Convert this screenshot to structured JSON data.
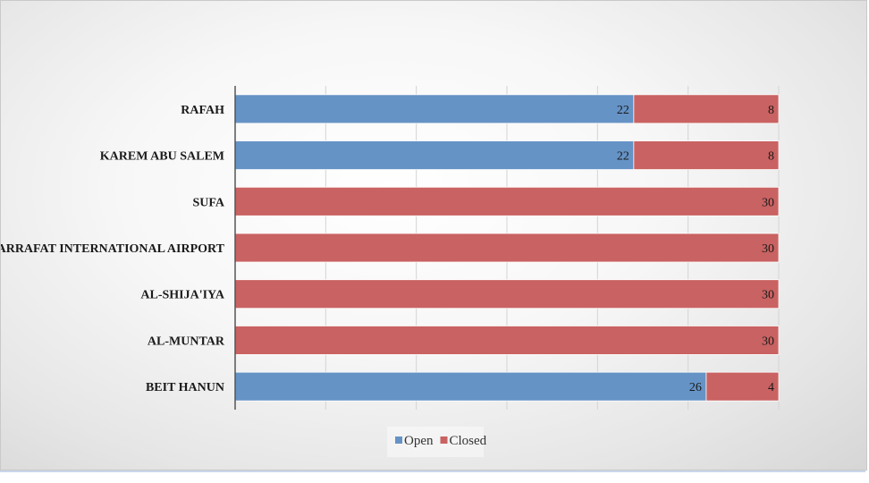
{
  "chart_data": {
    "type": "bar",
    "orientation": "horizontal",
    "stacked": true,
    "categories": [
      "RAFAH",
      "KAREM ABU SALEM",
      "SUFA",
      "YASSER ARRAFAT INTERNATIONAL AIRPORT",
      "AL-SHIJA'IYA",
      "AL-MUNTAR",
      "BEIT HANUN"
    ],
    "series": [
      {
        "name": "Open",
        "values": [
          22,
          22,
          0,
          0,
          0,
          0,
          26
        ],
        "color": "#6593c6"
      },
      {
        "name": "Closed",
        "values": [
          8,
          8,
          30,
          30,
          30,
          30,
          4
        ],
        "color": "#c96262"
      }
    ],
    "xlim": [
      0,
      30
    ],
    "x_gridline_step": 5,
    "grid": true,
    "legend": "bottom",
    "title": "",
    "xlabel": "",
    "ylabel": ""
  }
}
